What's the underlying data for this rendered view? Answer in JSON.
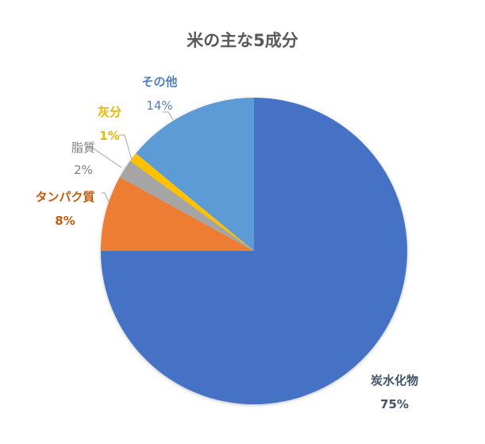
{
  "chart_data": {
    "type": "pie",
    "title": "米の主な5成分",
    "categories": [
      "炭水化物",
      "タンパク質",
      "脂質",
      "灰分",
      "その他"
    ],
    "values": [
      75,
      8,
      2,
      1,
      14
    ],
    "unit": "%",
    "colors": [
      "#4472C4",
      "#ED7D31",
      "#A5A5A5",
      "#FFC000",
      "#5B9BD5"
    ],
    "legend": "none (data labels with leader lines)",
    "start_angle_deg": 0,
    "direction": "clockwise"
  },
  "labels": [
    {
      "name": "炭水化物",
      "pct": "75%",
      "color": "#44546A"
    },
    {
      "name": "タンパク質",
      "pct": "8%",
      "color": "#C55A11"
    },
    {
      "name": "脂質",
      "pct": "2%",
      "color": "#7F7F7F"
    },
    {
      "name": "灰分",
      "pct": "1%",
      "color": "#E6B800"
    },
    {
      "name": "その他",
      "pct": "14%",
      "color": "#4F81BD"
    }
  ]
}
